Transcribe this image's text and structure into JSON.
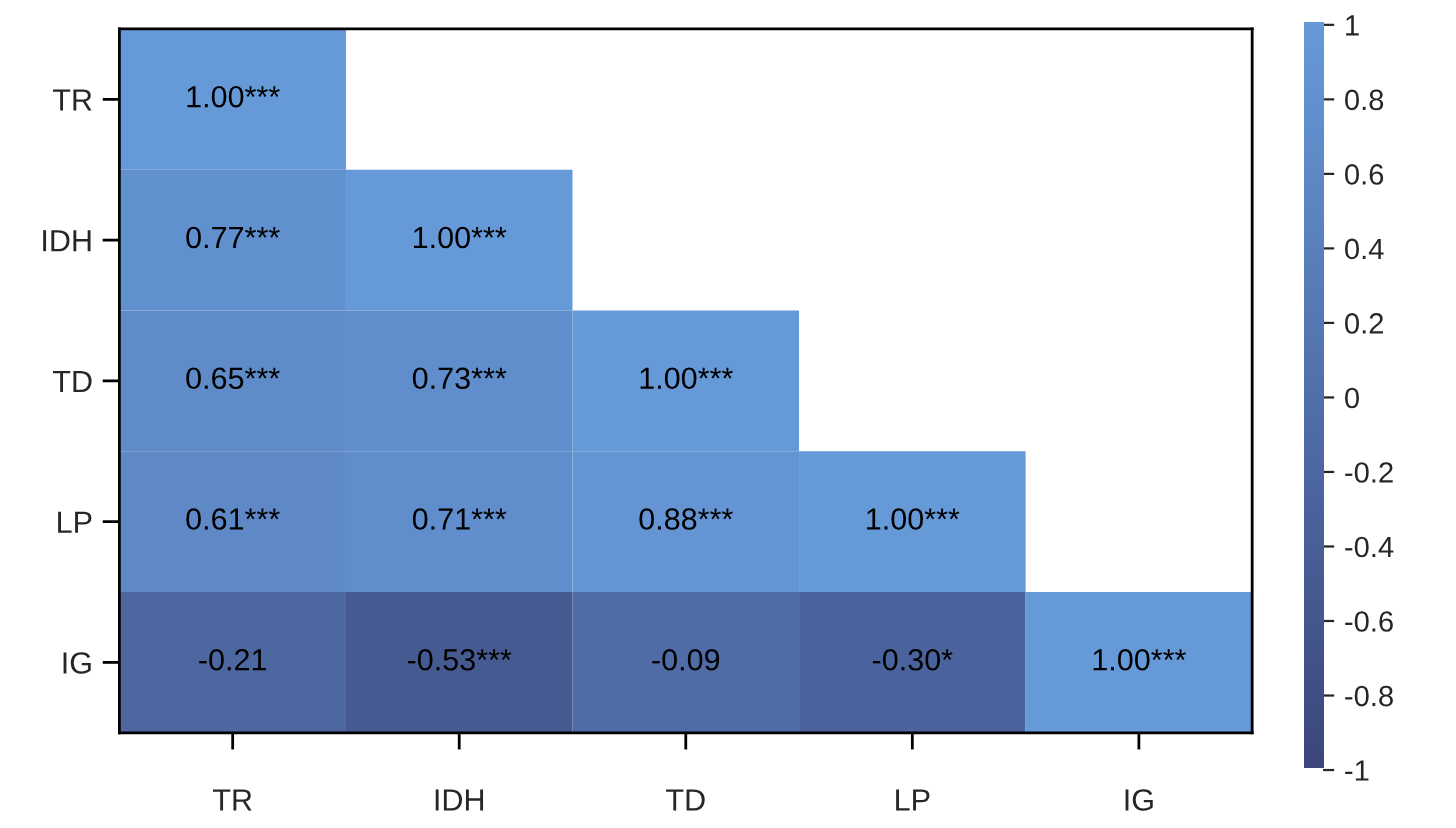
{
  "chart_data": {
    "type": "heatmap",
    "categories": [
      "TR",
      "IDH",
      "TD",
      "LP",
      "IG"
    ],
    "y_categories": [
      "TR",
      "IDH",
      "TD",
      "LP",
      "IG"
    ],
    "cells": [
      [
        1.0,
        null,
        null,
        null,
        null
      ],
      [
        0.77,
        1.0,
        null,
        null,
        null
      ],
      [
        0.65,
        0.73,
        1.0,
        null,
        null
      ],
      [
        0.61,
        0.71,
        0.88,
        1.0,
        null
      ],
      [
        -0.21,
        -0.53,
        -0.09,
        -0.3,
        1.0
      ]
    ],
    "cell_labels": [
      [
        "1.00***",
        null,
        null,
        null,
        null
      ],
      [
        "0.77***",
        "1.00***",
        null,
        null,
        null
      ],
      [
        "0.65***",
        "0.73***",
        "1.00***",
        null,
        null
      ],
      [
        "0.61***",
        "0.71***",
        "0.88***",
        "1.00***",
        null
      ],
      [
        "-0.21",
        "-0.53***",
        "-0.09",
        "-0.30*",
        "1.00***"
      ]
    ],
    "colors": [
      "#3c467c",
      "#6699d8"
    ],
    "clim": [
      -1,
      1
    ],
    "cticks": [
      1,
      0.8,
      0.6,
      0.4,
      0.2,
      0,
      -0.2,
      -0.4,
      -0.6,
      -0.8,
      -1
    ]
  }
}
